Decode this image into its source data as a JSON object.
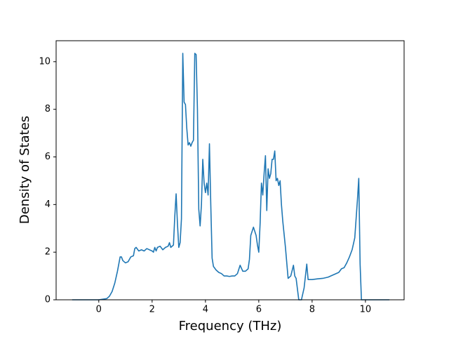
{
  "chart_data": {
    "type": "line",
    "xlabel": "Frequency (THz)",
    "ylabel": "Density of States",
    "color": "#1f77b4",
    "xlim": [
      -1.6,
      11.45
    ],
    "ylim": [
      0,
      10.88
    ],
    "xticks": [
      0,
      2,
      4,
      6,
      8,
      10
    ],
    "yticks": [
      0,
      2,
      4,
      6,
      8,
      10
    ],
    "x": [
      -1.0,
      0.0,
      0.3,
      0.4,
      0.5,
      0.6,
      0.7,
      0.8,
      0.85,
      0.9,
      1.0,
      1.1,
      1.2,
      1.3,
      1.35,
      1.4,
      1.5,
      1.6,
      1.7,
      1.8,
      2.0,
      2.05,
      2.1,
      2.15,
      2.2,
      2.3,
      2.4,
      2.5,
      2.6,
      2.65,
      2.7,
      2.8,
      2.85,
      2.9,
      2.95,
      3.0,
      3.05,
      3.1,
      3.15,
      3.2,
      3.25,
      3.3,
      3.35,
      3.4,
      3.45,
      3.5,
      3.55,
      3.6,
      3.65,
      3.7,
      3.75,
      3.8,
      3.85,
      3.9,
      3.95,
      4.0,
      4.05,
      4.1,
      4.15,
      4.2,
      4.25,
      4.3,
      4.4,
      4.5,
      4.6,
      4.7,
      4.8,
      4.9,
      5.0,
      5.1,
      5.2,
      5.3,
      5.4,
      5.5,
      5.6,
      5.65,
      5.7,
      5.8,
      5.9,
      5.95,
      6.0,
      6.05,
      6.1,
      6.15,
      6.2,
      6.25,
      6.3,
      6.35,
      6.4,
      6.45,
      6.5,
      6.55,
      6.6,
      6.65,
      6.7,
      6.75,
      6.8,
      6.85,
      6.9,
      7.0,
      7.1,
      7.2,
      7.3,
      7.35,
      7.4,
      7.5,
      7.6,
      7.7,
      7.75,
      7.8,
      7.85,
      8.0,
      8.2,
      8.4,
      8.6,
      8.8,
      9.0,
      9.1,
      9.2,
      9.3,
      9.4,
      9.5,
      9.6,
      9.7,
      9.75,
      9.8,
      9.85,
      10.9
    ],
    "values": [
      0,
      0,
      0.05,
      0.15,
      0.35,
      0.7,
      1.2,
      1.8,
      1.8,
      1.65,
      1.55,
      1.6,
      1.8,
      1.85,
      2.15,
      2.2,
      2.05,
      2.1,
      2.05,
      2.15,
      2.05,
      2.0,
      2.2,
      2.05,
      2.2,
      2.25,
      2.1,
      2.2,
      2.25,
      2.4,
      2.2,
      2.3,
      3.5,
      4.45,
      3.2,
      2.2,
      2.4,
      3.4,
      10.35,
      8.3,
      8.2,
      7.2,
      6.5,
      6.6,
      6.45,
      6.6,
      6.7,
      10.35,
      10.3,
      8,
      3.8,
      3.1,
      4.0,
      5.9,
      4.9,
      4.5,
      4.9,
      4.4,
      6.55,
      4.0,
      1.75,
      1.4,
      1.25,
      1.15,
      1.1,
      1.0,
      1.0,
      0.98,
      1.0,
      1.0,
      1.1,
      1.45,
      1.2,
      1.2,
      1.3,
      1.7,
      2.7,
      3.05,
      2.7,
      2.3,
      2.0,
      3.2,
      4.9,
      4.4,
      5.3,
      6.05,
      3.75,
      5.5,
      5.1,
      5.3,
      5.9,
      5.9,
      6.25,
      5.0,
      5.1,
      4.8,
      5.0,
      4.0,
      3.3,
      2.2,
      0.9,
      1.0,
      1.45,
      1.0,
      0.9,
      0,
      0,
      0.5,
      1.0,
      1.5,
      0.85,
      0.85,
      0.88,
      0.9,
      0.95,
      1.05,
      1.15,
      1.3,
      1.35,
      1.55,
      1.8,
      2.1,
      2.6,
      4.2,
      5.1,
      1.5,
      0,
      0
    ]
  }
}
